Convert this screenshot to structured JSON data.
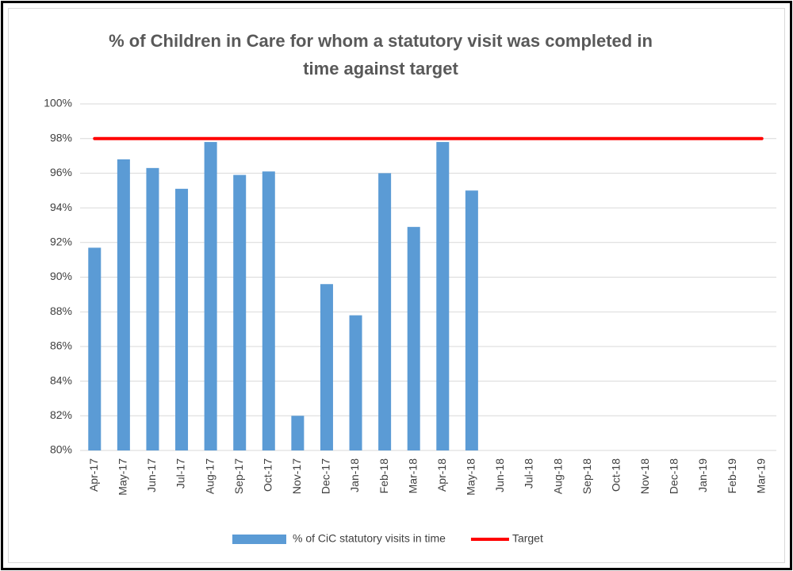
{
  "chart_data": {
    "type": "bar",
    "title": "% of Children in Care for whom a statutory visit was completed in time against target",
    "categories": [
      "Apr-17",
      "May-17",
      "Jun-17",
      "Jul-17",
      "Aug-17",
      "Sep-17",
      "Oct-17",
      "Nov-17",
      "Dec-17",
      "Jan-18",
      "Feb-18",
      "Mar-18",
      "Apr-18",
      "May-18",
      "Jun-18",
      "Jul-18",
      "Aug-18",
      "Sep-18",
      "Oct-18",
      "Nov-18",
      "Dec-18",
      "Jan-19",
      "Feb-19",
      "Mar-19"
    ],
    "series": [
      {
        "name": "% of CiC statutory visits in time",
        "type": "bar",
        "color": "#5b9bd5",
        "values": [
          91.7,
          96.8,
          96.3,
          95.1,
          97.8,
          95.9,
          96.1,
          82.0,
          89.6,
          87.8,
          96.0,
          92.9,
          97.8,
          95.0,
          null,
          null,
          null,
          null,
          null,
          null,
          null,
          null,
          null,
          null
        ]
      },
      {
        "name": "Target",
        "type": "line",
        "color": "#ff0000",
        "values": [
          98,
          98,
          98,
          98,
          98,
          98,
          98,
          98,
          98,
          98,
          98,
          98,
          98,
          98,
          98,
          98,
          98,
          98,
          98,
          98,
          98,
          98,
          98,
          98
        ]
      }
    ],
    "ylim": [
      80,
      100
    ],
    "yticks": [
      {
        "value": 80,
        "label": "80%"
      },
      {
        "value": 82,
        "label": "82%"
      },
      {
        "value": 84,
        "label": "84%"
      },
      {
        "value": 86,
        "label": "86%"
      },
      {
        "value": 88,
        "label": "88%"
      },
      {
        "value": 90,
        "label": "90%"
      },
      {
        "value": 92,
        "label": "92%"
      },
      {
        "value": 94,
        "label": "94%"
      },
      {
        "value": 96,
        "label": "96%"
      },
      {
        "value": 98,
        "label": "98%"
      },
      {
        "value": 100,
        "label": "100%"
      }
    ],
    "grid": true,
    "legend": "bottom"
  }
}
